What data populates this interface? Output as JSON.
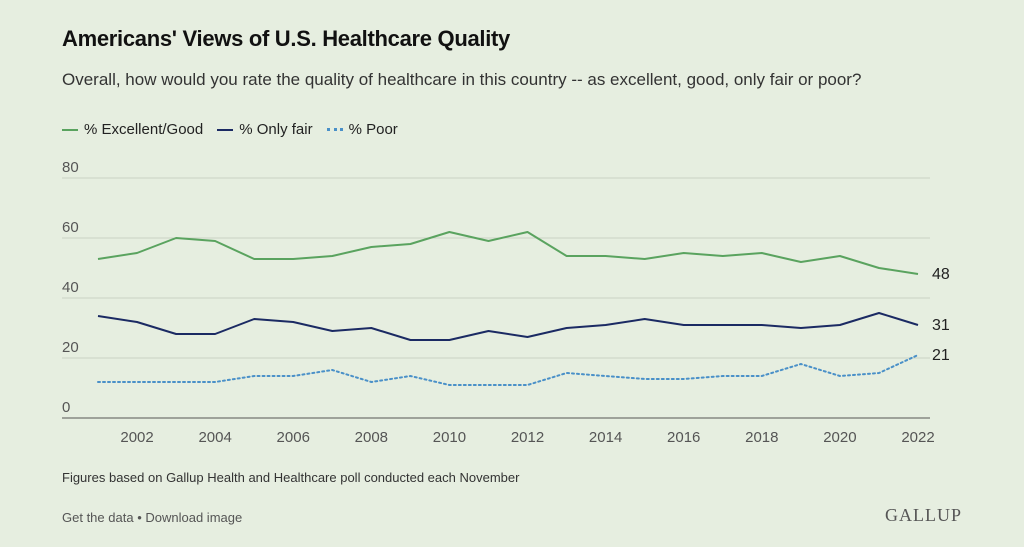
{
  "title": "Americans' Views of U.S. Healthcare Quality",
  "subtitle": "Overall, how would you rate the quality of healthcare in this country -- as excellent, good, only fair or poor?",
  "footnote": "Figures based on Gallup Health and Healthcare poll conducted each November",
  "links": {
    "get_data": "Get the data",
    "separator": "•",
    "download": "Download image"
  },
  "brand": "GALLUP",
  "colors": {
    "excellent": "#5aa35f",
    "fair": "#1b2a63",
    "poor": "#4a90c8",
    "grid": "#c9d3c3",
    "axis": "#333333"
  },
  "chart_data": {
    "type": "line",
    "x": [
      2001,
      2002,
      2003,
      2004,
      2005,
      2006,
      2007,
      2008,
      2009,
      2010,
      2011,
      2012,
      2013,
      2014,
      2015,
      2016,
      2017,
      2018,
      2019,
      2020,
      2021,
      2022
    ],
    "xticks": [
      "2002",
      "2004",
      "2006",
      "2008",
      "2010",
      "2012",
      "2014",
      "2016",
      "2018",
      "2020",
      "2022"
    ],
    "yticks": [
      "0",
      "20",
      "40",
      "60",
      "80"
    ],
    "ylim": [
      0,
      80
    ],
    "grid": true,
    "legend_position": "top-left",
    "series": [
      {
        "name": "% Excellent/Good",
        "key": "excellent",
        "style": "solid",
        "values": [
          53,
          55,
          60,
          59,
          53,
          53,
          54,
          57,
          58,
          62,
          59,
          62,
          54,
          54,
          53,
          55,
          54,
          55,
          52,
          54,
          50,
          48
        ],
        "end_label": "48"
      },
      {
        "name": "% Only fair",
        "key": "fair",
        "style": "solid",
        "values": [
          34,
          32,
          28,
          28,
          33,
          32,
          29,
          30,
          26,
          26,
          29,
          27,
          30,
          31,
          33,
          31,
          31,
          31,
          30,
          31,
          35,
          31
        ],
        "end_label": "31"
      },
      {
        "name": "% Poor",
        "key": "poor",
        "style": "dotted",
        "values": [
          12,
          12,
          12,
          12,
          14,
          14,
          16,
          12,
          14,
          11,
          11,
          11,
          15,
          14,
          13,
          13,
          14,
          14,
          18,
          14,
          15,
          21
        ],
        "end_label": "21"
      }
    ]
  }
}
